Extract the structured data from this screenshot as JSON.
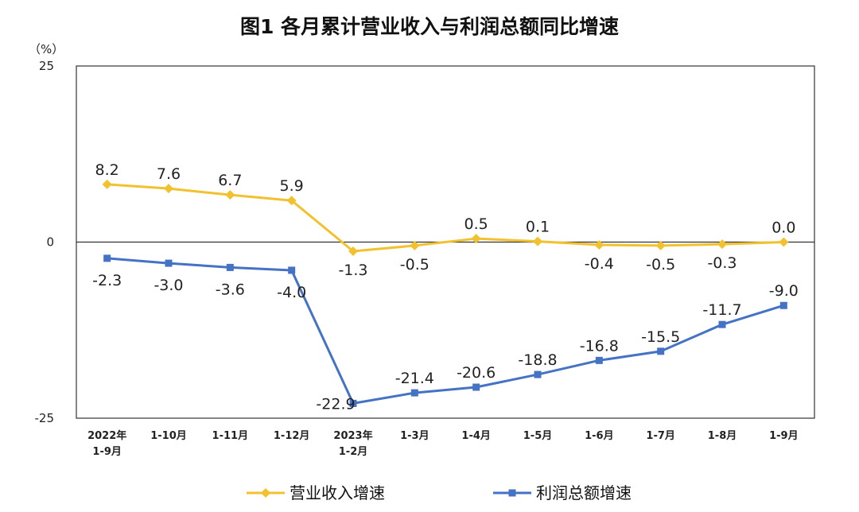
{
  "chart_data": {
    "type": "line",
    "title": "图1  各月累计营业收入与利润总额同比增速",
    "yunit": "（%）",
    "ylim": [
      -25,
      25
    ],
    "yticks": [
      "25",
      "0",
      "-25"
    ],
    "ytick_values": [
      25,
      0,
      -25
    ],
    "categories": [
      "2022年\n1-9月",
      "1-10月",
      "1-11月",
      "1-12月",
      "2023年\n1-2月",
      "1-3月",
      "1-4月",
      "1-5月",
      "1-6月",
      "1-7月",
      "1-8月",
      "1-9月"
    ],
    "series": [
      {
        "name": "营业收入增速",
        "color": "#F2C12E",
        "marker": "diamond",
        "values": [
          8.2,
          7.6,
          6.7,
          5.9,
          -1.3,
          -0.5,
          0.5,
          0.1,
          -0.4,
          -0.5,
          -0.3,
          0.0
        ],
        "labels": [
          "8.2",
          "7.6",
          "6.7",
          "5.9",
          "-1.3",
          "-0.5",
          "0.5",
          "0.1",
          "-0.4",
          "-0.5",
          "-0.3",
          "0.0"
        ]
      },
      {
        "name": "利润总额增速",
        "color": "#4472C4",
        "marker": "square",
        "values": [
          -2.3,
          -3.0,
          -3.6,
          -4.0,
          -22.9,
          -21.4,
          -20.6,
          -18.8,
          -16.8,
          -15.5,
          -11.7,
          -9.0
        ],
        "labels": [
          "-2.3",
          "-3.0",
          "-3.6",
          "-4.0",
          "-22.9",
          "-21.4",
          "-20.6",
          "-18.8",
          "-16.8",
          "-15.5",
          "-11.7",
          "-9.0"
        ]
      }
    ],
    "grid": false,
    "legend_position": "bottom"
  }
}
